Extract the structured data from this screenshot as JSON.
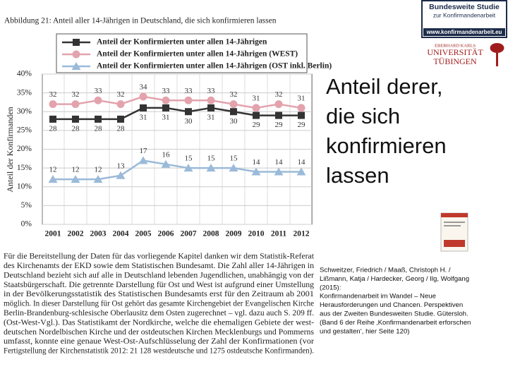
{
  "chart_data": {
    "type": "line",
    "title": "Abbildung 21: Anteil aller 14-Jährigen in Deutschland, die sich konfirmieren lassen",
    "y_label": "Anteil der Konfirmanden",
    "categories": [
      "2001",
      "2002",
      "2003",
      "2004",
      "2005",
      "2006",
      "2007",
      "2008",
      "2009",
      "2010",
      "2011",
      "2012"
    ],
    "series": [
      {
        "name": "Anteil der Konfirmierten unter allen 14-Jährigen",
        "color": "#333333",
        "marker": "square",
        "values": [
          28,
          28,
          28,
          28,
          31,
          31,
          30,
          31,
          30,
          29,
          29,
          29
        ]
      },
      {
        "name": "Anteil der Konfirmierten unter allen 14-Jährigen (WEST)",
        "color": "#e3a3ad",
        "marker": "circle",
        "values": [
          32,
          32,
          33,
          32,
          34,
          33,
          33,
          33,
          32,
          31,
          32,
          31
        ]
      },
      {
        "name": "Anteil der Konfirmierten unter allen 14-Jährigen (OST inkl. Berlin)",
        "color": "#9bbad9",
        "marker": "triangle",
        "values": [
          12,
          12,
          12,
          13,
          17,
          16,
          15,
          15,
          15,
          14,
          14,
          14
        ]
      }
    ],
    "ylim": [
      0,
      40
    ],
    "yticks": [
      {
        "value": 0,
        "label": "0%"
      },
      {
        "value": 5,
        "label": "5%"
      },
      {
        "value": 10,
        "label": "10%"
      },
      {
        "value": 15,
        "label": "15%"
      },
      {
        "value": 20,
        "label": "20%"
      },
      {
        "value": 25,
        "label": "25%"
      },
      {
        "value": 30,
        "label": "30%"
      },
      {
        "value": 35,
        "label": "35%"
      },
      {
        "value": 40,
        "label": "40%"
      }
    ],
    "grid": true
  },
  "slide": {
    "heading": [
      "Anteil derer,",
      "die sich",
      "konfirmieren",
      "lassen"
    ],
    "logo": {
      "line1": "Bundesweite Studie",
      "line2": "zur Konfirmandenarbeit",
      "url": "www.konfirmandenarbeit.eu"
    },
    "university": [
      "EBERHARD KARLS",
      "UNIVERSITÄT",
      "TÜBINGEN"
    ],
    "footnote": [
      "Für die Bereitstellung der Daten für das vorliegende Kapitel danken wir dem Statistik-Referat",
      "des Kirchenamts der EKD sowie dem Statistischen Bundesamt. Die Zahl aller 14-Jährigen in",
      "Deutschland bezieht sich auf alle in Deutschland lebenden Jugendlichen, unabhängig von der",
      "Staatsbürgerschaft. Die getrennte Darstellung für Ost und West ist aufgrund einer Umstellung",
      "in der Bevölkerungsstatistik des Statistischen Bundesamts erst für den Zeitraum ab 2001",
      "möglich. In dieser Darstellung für Ost gehört das gesamte Kirchengebiet der Evangelischen Kirche",
      "Berlin-Brandenburg-schlesische Oberlausitz dem Osten zugerechnet – vgl. dazu auch S. 209 ff.",
      "(Ost-West-Vgl.). Das Statistikamt der Nordkirche, welche die ehemaligen Gebiete der west-",
      "deutschen Nordelbischen Kirche und der ostdeutschen Kirchen Mecklenburgs und Pommerns",
      "umfasst, konnte eine genaue West-Ost-Aufschlüsselung der Zahl der Konfirmationen (vor",
      "Fertigstellung der Kirchenstatistik 2012: 21 128 westdeutsche und 1275 ostdeutsche Konfirmanden)."
    ],
    "citation": [
      "Schweitzer, Friedrich / Maaß, Christoph H. /",
      "Lißmann, Katja / Hardecker, Georg / Ilg, Wolfgang",
      "(2015):",
      "Konfirmandenarbeit im Wandel – Neue",
      "Herausforderungen und Chancen. Perspektiven",
      "aus der Zweiten Bundesweiten Studie. Gütersloh.",
      "(Band 6 der Reihe ‚Konfirmandenarbeit erforschen",
      "und gestalten‘, hier Seite 120)"
    ]
  }
}
